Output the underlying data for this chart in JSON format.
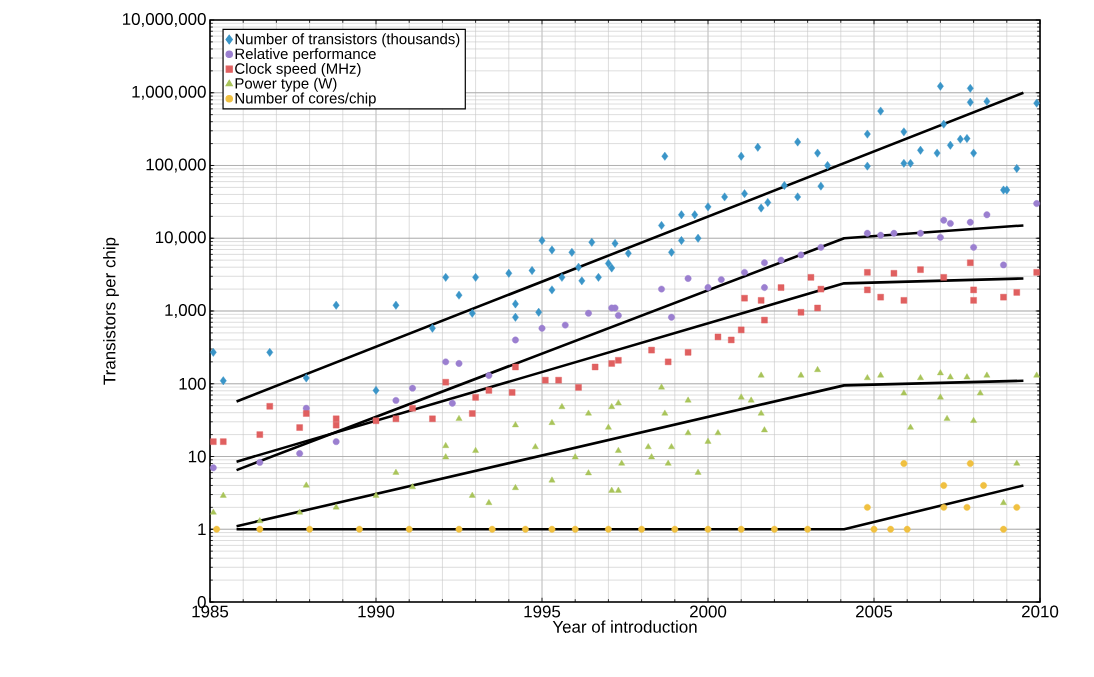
{
  "chart_data": {
    "type": "scatter",
    "xlabel": "Year of introduction",
    "ylabel": "Transistors per chip",
    "xlim": [
      1985,
      2010
    ],
    "xticks": [
      1985,
      1990,
      1995,
      2000,
      2005,
      2010
    ],
    "ylim": [
      0.1,
      10000000
    ],
    "log": "y",
    "yticks": [
      {
        "value": 0.1,
        "label": "0"
      },
      1,
      10,
      100,
      {
        "value": 1000,
        "label": "1,000"
      },
      {
        "value": 10000,
        "label": "10,000"
      },
      {
        "value": 100000,
        "label": "100,000"
      },
      {
        "value": 1000000,
        "label": "1,000,000"
      },
      {
        "value": 10000000,
        "label": "10,000,000"
      }
    ],
    "grid": true,
    "legend": "top left",
    "series": [
      {
        "type": "line",
        "color": "#000000",
        "line_style": "solid",
        "x": [
          1985.8,
          2009.5
        ],
        "values": [
          57,
          1000000
        ]
      },
      {
        "type": "line",
        "color": "#000000",
        "line_style": "solid",
        "x": [
          1985.8,
          2004.1,
          2009.5
        ],
        "values": [
          6.5,
          10000,
          15000
        ]
      },
      {
        "type": "line",
        "color": "#000000",
        "line_style": "solid",
        "x": [
          1985.8,
          2004.1,
          2009.5
        ],
        "values": [
          8.5,
          2400,
          2800
        ]
      },
      {
        "type": "line",
        "color": "#000000",
        "line_style": "solid",
        "x": [
          1985.8,
          2004.1,
          2009.5
        ],
        "values": [
          1.1,
          95,
          110
        ]
      },
      {
        "type": "line",
        "color": "#000000",
        "line_style": "solid",
        "x": [
          1985.8,
          2004.1,
          2009.5
        ],
        "values": [
          1,
          1,
          4
        ]
      },
      {
        "name": "Number of transistors (thousands)",
        "color": "#3a95c8",
        "marker": "diamond",
        "x": [
          1985.1,
          1985.4,
          1986.8,
          1987.9,
          1990.0,
          1988.8,
          1990.6,
          1991.7,
          1992.9,
          1994.2,
          1994.2,
          1994.9,
          1992.1,
          1993.0,
          1992.5,
          1995.0,
          1995.3,
          1995.9,
          1996.5,
          1997.2,
          1994.0,
          1994.7,
          1995.3,
          1995.6,
          1996.2,
          1996.7,
          1996.1,
          1997.0,
          1998.7,
          1997.1,
          1997.6,
          1998.6,
          1999.2,
          1999.6,
          1998.9,
          1999.2,
          1999.7,
          2000.0,
          2000.5,
          2001.1,
          2001.0,
          2001.5,
          2001.6,
          2001.8,
          2002.3,
          2002.7,
          2002.7,
          2003.3,
          2003.6,
          2003.4,
          2004.8,
          2005.2,
          2004.8,
          2005.9,
          2005.9,
          2006.1,
          2006.4,
          2006.9,
          2007.0,
          2007.1,
          2007.3,
          2007.6,
          2007.8,
          2008.0,
          2007.9,
          2007.9,
          2008.4,
          2008.9,
          2009.0,
          2009.3,
          2009.9
        ],
        "values": [
          270,
          110,
          270,
          120,
          81,
          1200,
          1200,
          580,
          930,
          1250,
          820,
          960,
          2900,
          2900,
          1650,
          9300,
          6900,
          6400,
          8800,
          8500,
          3300,
          3600,
          1950,
          2900,
          2600,
          2900,
          4000,
          4500,
          134000,
          3900,
          6200,
          15000,
          21000,
          21000,
          6400,
          9300,
          10000,
          27000,
          37000,
          41000,
          134000,
          178000,
          26000,
          31000,
          53000,
          37000,
          210000,
          148000,
          100000,
          52000,
          270000,
          560000,
          98000,
          290000,
          107000,
          107000,
          162000,
          148000,
          1230000,
          370000,
          190000,
          230000,
          235000,
          148000,
          1150000,
          740000,
          760000,
          46000,
          46000,
          91000,
          720000
        ]
      },
      {
        "name": "Relative performance",
        "color": "#9b7fd0",
        "marker": "circle",
        "x": [
          1985.1,
          1986.5,
          1987.7,
          1988.8,
          1987.9,
          1991.1,
          1990.6,
          1992.3,
          1992.1,
          1992.5,
          1993.4,
          1994.2,
          1995.0,
          1995.7,
          1996.4,
          1997.2,
          1997.3,
          1997.1,
          1998.6,
          1999.4,
          1998.9,
          2000.0,
          2000.4,
          2001.1,
          2001.7,
          2002.2,
          2002.8,
          2003.4,
          2001.7,
          2004.8,
          2005.2,
          2005.6,
          2006.4,
          2007.1,
          2007.3,
          2007.9,
          2008.4,
          2008.0,
          2008.9,
          2009.9,
          2007.0
        ],
        "values": [
          7,
          8.3,
          11,
          16,
          46,
          87,
          59,
          54,
          200,
          190,
          130,
          400,
          580,
          640,
          930,
          1100,
          870,
          1100,
          2000,
          2800,
          820,
          2100,
          2700,
          3400,
          4600,
          5000,
          5900,
          7500,
          2100,
          11700,
          11000,
          11700,
          11700,
          17700,
          16000,
          16600,
          21000,
          7500,
          4300,
          30000,
          10300
        ]
      },
      {
        "name": "Clock speed (MHz)",
        "color": "#e06060",
        "marker": "square",
        "x": [
          1985.1,
          1985.4,
          1986.5,
          1986.8,
          1987.7,
          1987.9,
          1988.8,
          1988.8,
          1990.0,
          1990.6,
          1991.7,
          1991.1,
          1992.9,
          1992.1,
          1993.0,
          1993.4,
          1994.1,
          1994.2,
          1995.1,
          1995.5,
          1996.1,
          1996.6,
          1997.3,
          1997.1,
          1998.3,
          1998.8,
          1999.4,
          2000.3,
          2000.7,
          2001.0,
          2001.7,
          2001.1,
          2001.6,
          2002.2,
          2002.8,
          2003.1,
          2003.4,
          2003.3,
          2004.8,
          2004.8,
          2005.2,
          2005.6,
          2005.9,
          2006.4,
          2007.1,
          2007.9,
          2008.0,
          2008.0,
          2008.9,
          2009.3,
          2009.9
        ],
        "values": [
          16,
          16,
          20,
          49,
          25,
          39,
          33,
          27,
          31,
          33,
          33,
          46,
          39,
          105,
          65,
          81,
          76,
          170,
          112,
          112,
          89,
          170,
          210,
          190,
          290,
          200,
          270,
          440,
          400,
          550,
          750,
          1500,
          1400,
          2100,
          960,
          2900,
          2000,
          1100,
          3400,
          1950,
          1550,
          3300,
          1400,
          3700,
          2900,
          4600,
          1950,
          1400,
          1550,
          1800,
          3400
        ]
      },
      {
        "name": "Power type (W)",
        "color": "#a9c45a",
        "marker": "triangle",
        "x": [
          1985.1,
          1985.4,
          1986.5,
          1987.7,
          1987.9,
          1988.8,
          1990.0,
          1990.6,
          1991.1,
          1992.1,
          1992.1,
          1992.5,
          1993.0,
          1992.9,
          1993.4,
          1994.2,
          1994.2,
          1994.8,
          1995.3,
          1995.3,
          1995.6,
          1996.4,
          1996.0,
          1996.4,
          1997.3,
          1997.3,
          1997.0,
          1997.1,
          1997.1,
          1997.3,
          1997.4,
          1998.6,
          1998.7,
          1998.2,
          1998.3,
          1998.9,
          1998.8,
          1999.4,
          1999.4,
          1999.7,
          2000.0,
          2000.3,
          2001.0,
          2001.3,
          2001.6,
          2001.6,
          2001.7,
          2002.8,
          2003.3,
          2004.8,
          2005.2,
          2005.9,
          2006.1,
          2006.4,
          2007.0,
          2007.3,
          2007.0,
          2007.2,
          2007.8,
          2008.0,
          2008.2,
          2008.4,
          2009.3,
          2008.9,
          2009.9
        ],
        "values": [
          1.7,
          2.9,
          1.3,
          1.7,
          4,
          2,
          2.9,
          6,
          3.8,
          14,
          9.8,
          33,
          12,
          2.9,
          2.3,
          27,
          3.7,
          13.5,
          4.7,
          29,
          48,
          39,
          9.8,
          5.9,
          54,
          3.4,
          25,
          48,
          3.4,
          12,
          8,
          89,
          39,
          13.5,
          9.8,
          13.5,
          8,
          59,
          21,
          6,
          16,
          21,
          65,
          59,
          130,
          39,
          23,
          130,
          155,
          120,
          130,
          74,
          25,
          120,
          140,
          123,
          65,
          33,
          123,
          31,
          74,
          130,
          8,
          2.3,
          130
        ]
      },
      {
        "name": "Number of cores/chip",
        "color": "#f0c040",
        "marker": "circle",
        "x": [
          1985.2,
          1986.5,
          1988.0,
          1989.5,
          1991.0,
          1992.5,
          1993.5,
          1994.5,
          1995.3,
          1996.0,
          1997.0,
          1998.0,
          1999.0,
          2000.0,
          2001.0,
          2002.0,
          2003.0,
          2004.8,
          2005.0,
          2005.5,
          2006.0,
          2005.9,
          2007.1,
          2007.9,
          2008.3,
          2007.1,
          2007.8,
          2008.9,
          2009.3
        ],
        "values": [
          1,
          1,
          1,
          1,
          1,
          1,
          1,
          1,
          1,
          1,
          1,
          1,
          1,
          1,
          1,
          1,
          1,
          2,
          1,
          1,
          1,
          8,
          4,
          8,
          4,
          2,
          2,
          1,
          2
        ]
      }
    ]
  }
}
